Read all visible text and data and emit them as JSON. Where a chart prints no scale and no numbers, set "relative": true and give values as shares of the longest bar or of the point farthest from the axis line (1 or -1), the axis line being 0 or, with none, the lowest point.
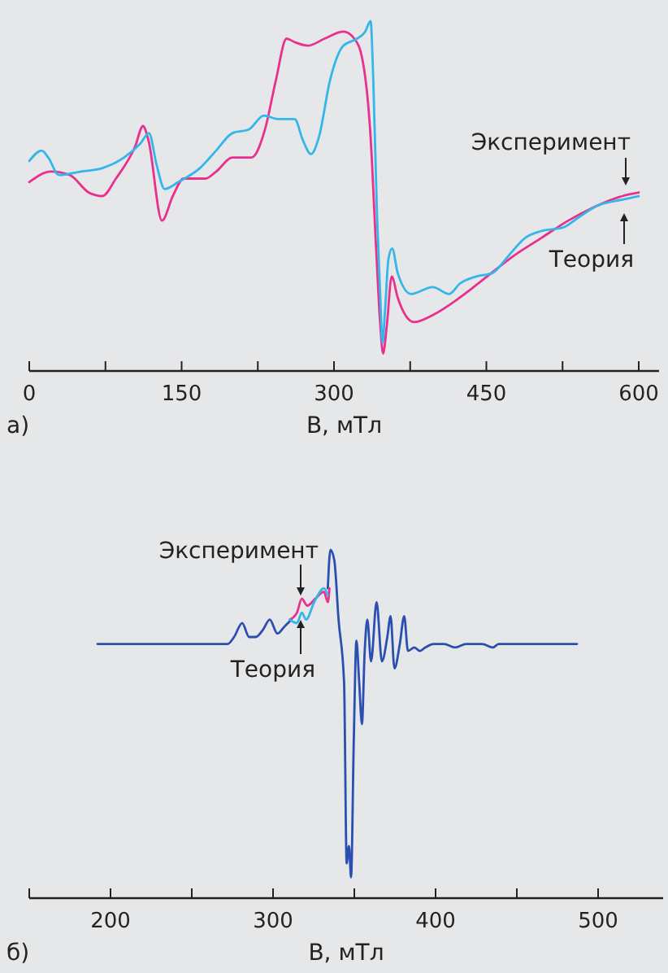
{
  "chart_data": [
    {
      "type": "line",
      "relative": true,
      "xlabel": "B, мТл",
      "annotations": [
        "а)"
      ],
      "xlim": [
        0,
        620
      ],
      "xticks": [
        0,
        {
          "value": 75,
          "label": null
        },
        150,
        {
          "value": 225,
          "label": null
        },
        300,
        {
          "value": 375,
          "label": null
        },
        450,
        {
          "value": 525,
          "label": null
        },
        600
      ],
      "series": [
        {
          "name": "Эксперимент",
          "color": "#e8308c",
          "x": [
            0,
            21.3,
            40,
            58.7,
            72,
            85.3,
            104,
            112,
            117.3,
            130.7,
            141.3,
            152,
            173.3,
            184,
            200,
            218.7,
            232,
            242.7,
            253.3,
            261.3,
            274.7,
            290.7,
            309.3,
            320,
            328,
            336,
            341.3,
            345.6,
            348.3,
            352,
            356.8,
            362.7,
            378.7,
            397.3,
            424,
            450.7,
            477.3,
            504,
            530.7,
            557.3,
            584,
            600
          ],
          "values": [
            0.54,
            0.57,
            0.56,
            0.51,
            0.5,
            0.55,
            0.64,
            0.7,
            0.66,
            0.43,
            0.5,
            0.55,
            0.55,
            0.57,
            0.61,
            0.61,
            0.69,
            0.83,
            0.95,
            0.94,
            0.93,
            0.95,
            0.97,
            0.95,
            0.89,
            0.67,
            0.36,
            0.13,
            0.05,
            0.13,
            0.27,
            0.21,
            0.14,
            0.16,
            0.21,
            0.27,
            0.33,
            0.38,
            0.43,
            0.47,
            0.5,
            0.51
          ]
        },
        {
          "name": "Теория",
          "color": "#35b6e8",
          "x": [
            0,
            12.3,
            18.7,
            29.3,
            50.7,
            72,
            93.3,
            109.3,
            117.9,
            125.3,
            133.3,
            146.7,
            168,
            184,
            200,
            216,
            231,
            245.3,
            261.3,
            269.3,
            277.3,
            285.3,
            296,
            309.3,
            322.7,
            330.7,
            336,
            338.7,
            342.4,
            345.6,
            347.7,
            350.4,
            353.6,
            357.3,
            362.7,
            376,
            397.3,
            413.3,
            424,
            440,
            456,
            472,
            488,
            504,
            525.3,
            541.3,
            557.3,
            584,
            600
          ],
          "values": [
            0.6,
            0.63,
            0.61,
            0.56,
            0.57,
            0.58,
            0.61,
            0.65,
            0.68,
            0.59,
            0.52,
            0.54,
            0.58,
            0.63,
            0.68,
            0.69,
            0.73,
            0.72,
            0.72,
            0.66,
            0.62,
            0.67,
            0.83,
            0.93,
            0.95,
            0.97,
            1,
            0.83,
            0.44,
            0.21,
            0.08,
            0.18,
            0.32,
            0.35,
            0.28,
            0.22,
            0.24,
            0.22,
            0.25,
            0.27,
            0.28,
            0.33,
            0.38,
            0.4,
            0.41,
            0.44,
            0.47,
            0.49,
            0.5
          ]
        }
      ]
    },
    {
      "type": "line",
      "relative": true,
      "xlabel": "B, мТл",
      "annotations": [
        "б)"
      ],
      "xlim": [
        150,
        540
      ],
      "xticks": [
        {
          "value": 150,
          "label": null
        },
        200,
        {
          "value": 250,
          "label": null
        },
        300,
        {
          "value": 350,
          "label": null
        },
        400,
        {
          "value": 450,
          "label": null
        },
        500
      ],
      "series": [
        {
          "color": "#2a4fb0",
          "x": [
            192,
            272,
            276,
            281,
            285.3,
            289.3,
            293.7,
            298,
            302.7,
            307,
            311.3,
            322,
            333.7,
            335.3,
            337.7,
            340.3,
            343.7,
            345.3,
            346.7,
            348,
            349.7,
            351.3,
            353,
            354.7,
            356.3,
            358,
            360.3,
            363.7,
            367,
            370.3,
            372.3,
            374.7,
            378,
            380.7,
            383,
            387,
            390.3,
            393.7,
            398.7,
            405.3,
            412,
            418.7,
            428.7,
            435.3,
            438.7,
            487
          ],
          "values": [
            0.73,
            0.73,
            0.75,
            0.79,
            0.75,
            0.75,
            0.77,
            0.8,
            0.76,
            0.78,
            0.8,
            null,
            0.89,
            1,
            0.97,
            0.8,
            0.62,
            0.1,
            0.15,
            0.06,
            0.46,
            0.74,
            0.62,
            0.5,
            0.7,
            0.8,
            0.68,
            0.85,
            0.68,
            0.75,
            0.81,
            0.66,
            0.73,
            0.81,
            0.71,
            0.72,
            0.71,
            0.72,
            0.73,
            0.73,
            0.72,
            0.73,
            0.73,
            0.72,
            0.73,
            0.73
          ]
        },
        {
          "name": "Эксперимент",
          "color": "#e8308c",
          "x": [
            310.3,
            314.7,
            317.7,
            321,
            326,
            331.3,
            333.7,
            334.7
          ],
          "values": [
            0.8,
            0.82,
            0.86,
            0.84,
            0.86,
            0.88,
            0.85,
            0.89
          ]
        },
        {
          "name": "Теория",
          "color": "#35b6e8",
          "x": [
            310.3,
            314.7,
            317.7,
            320.3,
            325.3,
            331.3,
            333.7
          ],
          "values": [
            0.8,
            0.79,
            0.82,
            0.8,
            0.85,
            0.89,
            0.87
          ]
        }
      ]
    }
  ]
}
